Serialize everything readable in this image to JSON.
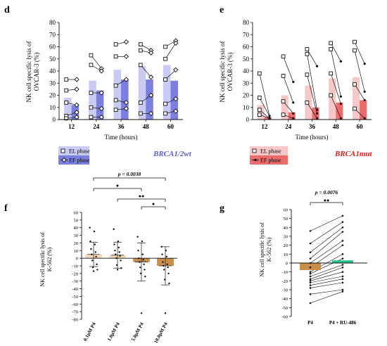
{
  "figure": {
    "panels": [
      {
        "id": "d",
        "letter": "d"
      },
      {
        "id": "e",
        "letter": "e"
      },
      {
        "id": "f",
        "letter": "f"
      },
      {
        "id": "g",
        "letter": "g"
      }
    ]
  },
  "colors": {
    "d_el": "#c9cbf5",
    "d_ef": "#7b7fe0",
    "d_accent": "#5b5fd6",
    "e_el": "#f8c8c8",
    "e_ef": "#ee6b6b",
    "e_accent": "#e31b1b",
    "f_light": "#f7d9b5",
    "f_dark": "#c98e47",
    "g_p4": "#c98e47",
    "g_ru": "#22c48a",
    "axis": "#111111"
  },
  "chart_data": [
    {
      "panel": "d",
      "type": "bar",
      "categories": [
        "12",
        "24",
        "36",
        "48",
        "60"
      ],
      "xlabel": "Time (hours)",
      "ylabel": [
        "NK cell specific lysis of",
        "OVCAR-3 (%)"
      ],
      "ylim": [
        0,
        80
      ],
      "yticks": [
        0,
        10,
        20,
        30,
        40,
        50,
        60,
        70,
        80
      ],
      "series": [
        {
          "name": "EL phase",
          "marker": "square",
          "values": [
            18,
            32,
            41,
            44,
            45
          ],
          "points": [
            [
              33,
              24,
              14,
              3,
              1
            ],
            [
              53,
              45,
              22,
              10,
              2
            ],
            [
              62,
              52,
              28,
              16,
              8
            ],
            [
              62,
              57,
              45,
              14,
              5
            ],
            [
              60,
              50,
              33,
              13,
              5
            ]
          ]
        },
        {
          "name": "EF phase",
          "marker": "diamond",
          "values": [
            12,
            24,
            33,
            33,
            32
          ],
          "points": [
            [
              33,
              25,
              12,
              6,
              2
            ],
            [
              42,
              40,
              22,
              9,
              2
            ],
            [
              64,
              52,
              33,
              14,
              9
            ],
            [
              57,
              55,
              35,
              20,
              5
            ],
            [
              65,
              63,
              41,
              17,
              7
            ]
          ]
        }
      ],
      "legend_position": "bottom-left",
      "annotation": "BRCA1/2wt"
    },
    {
      "panel": "e",
      "type": "bar",
      "categories": [
        "12",
        "24",
        "36",
        "48",
        "60"
      ],
      "xlabel": "Time (hours)",
      "ylabel": [
        "NK cell specific lysis of",
        "OVCAR-3 (%)"
      ],
      "ylim": [
        0,
        80
      ],
      "yticks": [
        0,
        10,
        20,
        30,
        40,
        50,
        60,
        70,
        80
      ],
      "series": [
        {
          "name": "EL phase",
          "marker": "square",
          "values": [
            12,
            20,
            28,
            34,
            35
          ],
          "points": [
            [
              38,
              18,
              8,
              4
            ],
            [
              52,
              36,
              15,
              4
            ],
            [
              58,
              54,
              37,
              14
            ],
            [
              63,
              58,
              38,
              20
            ],
            [
              64,
              57,
              29,
              9
            ]
          ]
        },
        {
          "name": "EF phase",
          "marker": "dot",
          "values": [
            2,
            6,
            10,
            14,
            16
          ],
          "points": [
            [
              3,
              3,
              1,
              1
            ],
            [
              31,
              14,
              5,
              1
            ],
            [
              44,
              8,
              5,
              1
            ],
            [
              48,
              19,
              13,
              1
            ],
            [
              46,
              23,
              16,
              1
            ]
          ]
        }
      ],
      "legend_position": "bottom-left",
      "annotation": "BRCA1mut"
    },
    {
      "panel": "f",
      "type": "bar",
      "categories": [
        "0.1µM P4",
        "1.0µM P4",
        "5.0µM P4",
        "10.0µM P4"
      ],
      "ylabel": [
        "NK cell specific lysis of",
        "K-562 (%)"
      ],
      "ylim": [
        -80,
        60
      ],
      "yticks": [
        -80,
        -70,
        -60,
        -50,
        -40,
        -30,
        -20,
        -10,
        0,
        10,
        20,
        30,
        40,
        50,
        60
      ],
      "values": [
        5,
        4,
        -5,
        -10
      ],
      "error_sd": [
        16,
        17,
        25,
        25
      ],
      "points": [
        [
          40,
          35,
          22,
          18,
          12,
          8,
          5,
          2,
          -3,
          -8,
          -12,
          -15,
          -17
        ],
        [
          38,
          22,
          18,
          14,
          10,
          8,
          5,
          3,
          0,
          -3,
          -9,
          -13,
          -15
        ],
        [
          28,
          22,
          10,
          5,
          0,
          -2,
          -5,
          -8,
          -12,
          -15,
          -20,
          -24,
          -72
        ],
        [
          15,
          10,
          5,
          2,
          -5,
          -8,
          -10,
          -12,
          -15,
          -20,
          -28,
          -33,
          -72
        ]
      ],
      "series_colors": [
        "f_light",
        "f_light",
        "f_dark",
        "f_dark"
      ],
      "significance": [
        {
          "from": 0,
          "to": 3,
          "label": "p = 0.0038",
          "marks": ""
        },
        {
          "from": 0,
          "to": 2,
          "label": "",
          "marks": "●"
        },
        {
          "from": 1,
          "to": 3,
          "label": "",
          "marks": "●●"
        },
        {
          "from": 2,
          "to": 3,
          "label": "",
          "marks": "●"
        }
      ]
    },
    {
      "panel": "g",
      "type": "bar",
      "categories": [
        "P4",
        "P4 + RU-486"
      ],
      "ylabel": [
        "NK cell specific lysis of",
        "K-562 (%)"
      ],
      "ylim": [
        -60,
        60
      ],
      "yticks": [
        -60,
        -50,
        -40,
        -30,
        -20,
        -10,
        0,
        10,
        20,
        30,
        40,
        50,
        60
      ],
      "values": [
        -8,
        3
      ],
      "pairs": [
        [
          36,
          53
        ],
        [
          22,
          46
        ],
        [
          12,
          40
        ],
        [
          5,
          35
        ],
        [
          0,
          25
        ],
        [
          -5,
          20
        ],
        [
          -10,
          10
        ],
        [
          -12,
          5
        ],
        [
          -15,
          -2
        ],
        [
          -18,
          -5
        ],
        [
          -20,
          -10
        ],
        [
          -22,
          -15
        ],
        [
          -25,
          -18
        ],
        [
          -28,
          -22
        ],
        [
          -35,
          -30
        ],
        [
          -45,
          -32
        ]
      ],
      "significance": [
        {
          "from": 0,
          "to": 1,
          "label": "p = 0.0076",
          "marks": "●●"
        }
      ]
    }
  ]
}
